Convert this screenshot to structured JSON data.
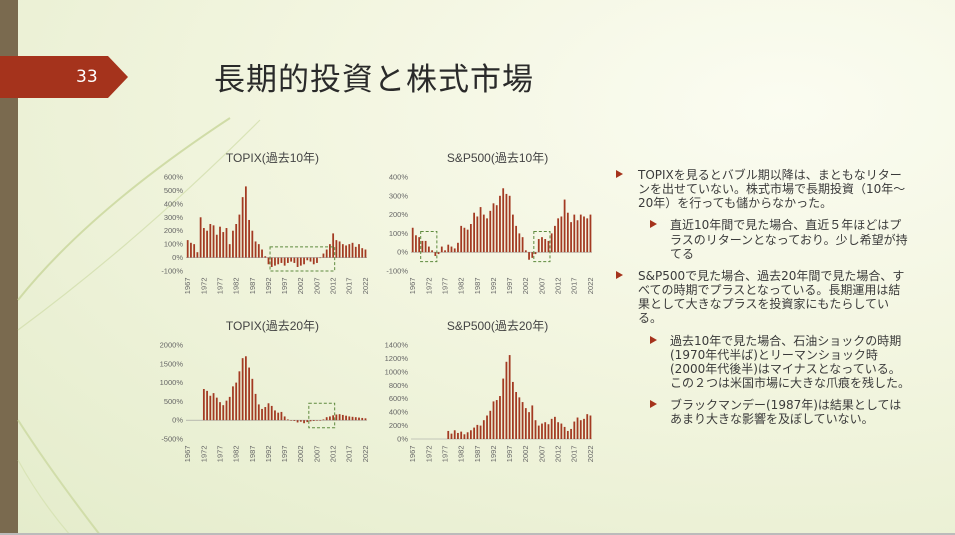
{
  "slide": {
    "number": "33",
    "title": "長期的投資と株式市場",
    "colors": {
      "accent": "#a5331c",
      "bar": "#a33a22",
      "highlight": "#5e8a3e",
      "sidebar": "#7a6a4f"
    }
  },
  "bullets": [
    {
      "level": 1,
      "text": "TOPIXを見るとバブル期以降は、まともなリターンを出せていない。株式市場で長期投資（10年～20年）を行っても儲からなかった。"
    },
    {
      "level": 2,
      "text": "直近10年間で見た場合、直近５年ほどはプラスのリターンとなっており。少し希望が持てる"
    },
    {
      "level": 1,
      "text": "S&P500で見た場合、過去20年間で見た場合、すべての時期でプラスとなっている。長期運用は結果として大きなプラスを投資家にもたらしている。"
    },
    {
      "level": 2,
      "text": "過去10年で見た場合、石油ショックの時期(1970年代半ば)とリーマンショック時(2000年代後半)はマイナスとなっている。この２つは米国市場に大きな爪痕を残した。"
    },
    {
      "level": 2,
      "text": "ブラックマンデー(1987年)は結果としてはあまり大きな影響を及ぼしていない。"
    }
  ],
  "chart_data": [
    {
      "type": "bar",
      "title": "TOPIX(過去10年)",
      "ylim": [
        -100,
        600
      ],
      "yticks": [
        -100,
        0,
        100,
        200,
        300,
        400,
        500,
        600
      ],
      "ytick_labels": [
        "-100%",
        "0%",
        "100%",
        "200%",
        "300%",
        "400%",
        "500%",
        "600%"
      ],
      "xtick_labels": [
        "1967",
        "1972",
        "1977",
        "1982",
        "1987",
        "1992",
        "1997",
        "2002",
        "2007",
        "2012",
        "2017",
        "2022"
      ],
      "x_start": 1967,
      "values": [
        130,
        110,
        100,
        40,
        300,
        220,
        200,
        250,
        240,
        170,
        230,
        190,
        220,
        100,
        200,
        250,
        320,
        450,
        530,
        280,
        200,
        120,
        100,
        60,
        10,
        -50,
        -70,
        -60,
        -50,
        -40,
        -60,
        -40,
        -30,
        -40,
        -70,
        -60,
        -50,
        -20,
        -30,
        -50,
        -40,
        0,
        30,
        60,
        100,
        180,
        130,
        120,
        100,
        90,
        100,
        110,
        80,
        100,
        70,
        60
      ],
      "highlights": [
        {
          "from": 1993,
          "to": 2012,
          "y_min": -100,
          "y_max": 80
        }
      ]
    },
    {
      "type": "bar",
      "title": "S&P500(過去10年)",
      "ylim": [
        -100,
        400
      ],
      "yticks": [
        -100,
        0,
        100,
        200,
        300,
        400
      ],
      "ytick_labels": [
        "-100%",
        "0%",
        "100%",
        "200%",
        "300%",
        "400%"
      ],
      "xtick_labels": [
        "1967",
        "1972",
        "1977",
        "1982",
        "1987",
        "1992",
        "1997",
        "2002",
        "2007",
        "2012",
        "2017",
        "2022"
      ],
      "x_start": 1967,
      "values": [
        130,
        90,
        80,
        60,
        60,
        30,
        10,
        -20,
        -10,
        30,
        10,
        40,
        30,
        20,
        50,
        140,
        130,
        120,
        150,
        210,
        190,
        240,
        200,
        180,
        220,
        260,
        250,
        300,
        340,
        310,
        300,
        200,
        140,
        100,
        80,
        10,
        -40,
        -30,
        -10,
        70,
        80,
        70,
        60,
        100,
        140,
        180,
        190,
        280,
        210,
        160,
        200,
        170,
        200,
        190,
        180,
        200
      ],
      "highlights": [
        {
          "from": 1970,
          "to": 1974,
          "y_min": -50,
          "y_max": 110
        },
        {
          "from": 2005,
          "to": 2009,
          "y_min": -50,
          "y_max": 110
        }
      ]
    },
    {
      "type": "bar",
      "title": "TOPIX(過去20年)",
      "ylim": [
        -500,
        2000
      ],
      "yticks": [
        -500,
        0,
        500,
        1000,
        1500,
        2000
      ],
      "ytick_labels": [
        "-500%",
        "0%",
        "500%",
        "1000%",
        "1500%",
        "2000%"
      ],
      "xtick_labels": [
        "1967",
        "1972",
        "1977",
        "1982",
        "1987",
        "1992",
        "1997",
        "2002",
        "2007",
        "2012",
        "2017",
        "2022"
      ],
      "x_start": 1967,
      "values": [
        null,
        null,
        null,
        null,
        null,
        830,
        780,
        650,
        720,
        600,
        480,
        400,
        520,
        620,
        900,
        1000,
        1300,
        1650,
        1700,
        1400,
        1100,
        700,
        420,
        300,
        350,
        450,
        380,
        260,
        200,
        220,
        100,
        20,
        0,
        -20,
        -60,
        -40,
        -80,
        -50,
        -30,
        -20,
        -10,
        0,
        20,
        80,
        100,
        130,
        150,
        160,
        140,
        120,
        100,
        90,
        80,
        70,
        60,
        50
      ],
      "highlights": [
        {
          "from": 2005,
          "to": 2012,
          "y_min": -200,
          "y_max": 450
        }
      ]
    },
    {
      "type": "bar",
      "title": "S&P500(過去20年)",
      "ylim": [
        0,
        1400
      ],
      "yticks": [
        0,
        200,
        400,
        600,
        800,
        1000,
        1200,
        1400
      ],
      "ytick_labels": [
        "0%",
        "200%",
        "400%",
        "600%",
        "800%",
        "1000%",
        "1200%",
        "1400%"
      ],
      "xtick_labels": [
        "1967",
        "1972",
        "1977",
        "1982",
        "1987",
        "1992",
        "1997",
        "2002",
        "2007",
        "2012",
        "2017",
        "2022"
      ],
      "x_start": 1967,
      "values": [
        null,
        null,
        null,
        null,
        null,
        null,
        null,
        null,
        null,
        null,
        null,
        120,
        80,
        130,
        90,
        110,
        70,
        100,
        130,
        170,
        210,
        200,
        280,
        350,
        420,
        560,
        580,
        640,
        900,
        1150,
        1250,
        850,
        700,
        620,
        550,
        460,
        400,
        500,
        280,
        200,
        230,
        250,
        220,
        300,
        330,
        250,
        230,
        180,
        120,
        150,
        260,
        320,
        280,
        300,
        370,
        350
      ],
      "highlights": []
    }
  ]
}
